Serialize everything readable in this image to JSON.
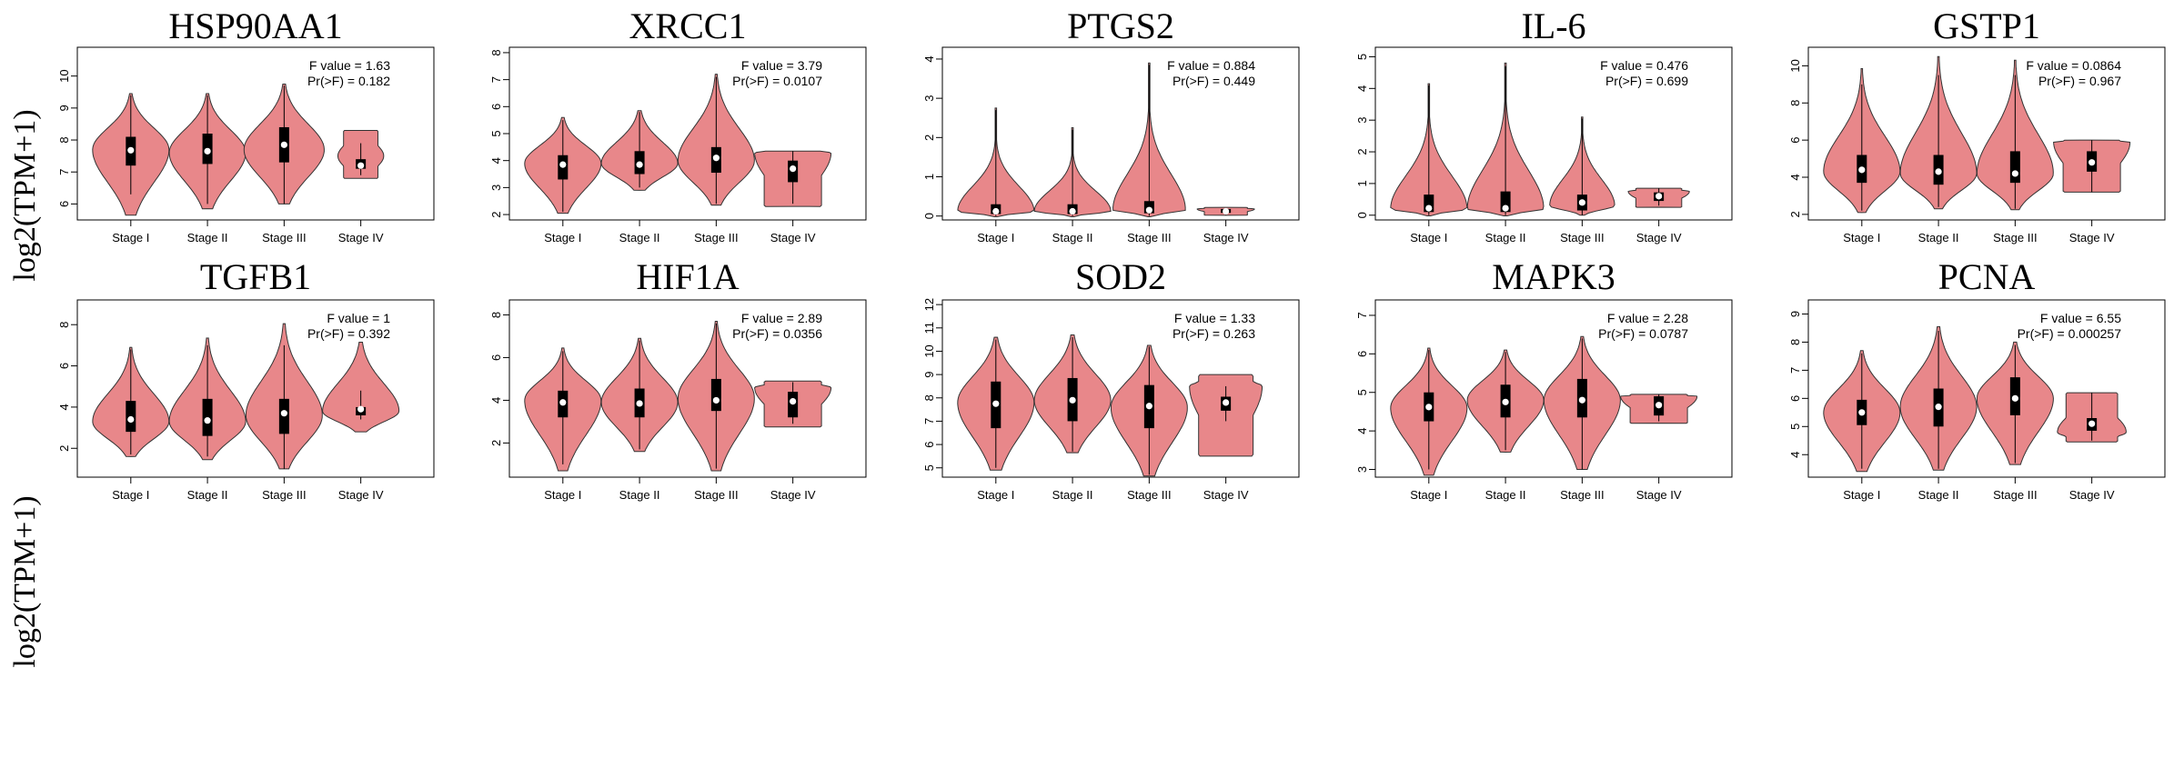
{
  "figure": {
    "ylabel": "log2(TPM+1)"
  },
  "colors": {
    "violin_fill": "#E8878A",
    "violin_stroke": "#333333",
    "box": "#000000",
    "median": "#ffffff"
  },
  "chart_data": [
    {
      "type": "violin",
      "title": "HSP90AA1",
      "categories": [
        "Stage I",
        "Stage II",
        "Stage III",
        "Stage IV"
      ],
      "ylim": [
        5.5,
        10.9
      ],
      "yticks": [
        6,
        7,
        8,
        9,
        10
      ],
      "stats": {
        "f_label": "F value = 1.63",
        "p_label": "Pr(>F) = 0.182"
      },
      "violins": [
        {
          "min": 5.65,
          "max": 9.45,
          "q1": 7.2,
          "q3": 8.1,
          "median": 7.68,
          "wlo": 6.3,
          "whi": 9.4,
          "peak": 7.7,
          "width": 1.0,
          "shape": 1.0
        },
        {
          "min": 5.85,
          "max": 9.45,
          "q1": 7.25,
          "q3": 8.2,
          "median": 7.65,
          "wlo": 6.0,
          "whi": 9.4,
          "peak": 7.6,
          "width": 1.0,
          "shape": 1.0
        },
        {
          "min": 6.0,
          "max": 9.75,
          "q1": 7.3,
          "q3": 8.4,
          "median": 7.85,
          "wlo": 6.0,
          "whi": 9.7,
          "peak": 7.7,
          "width": 1.05,
          "shape": 1.0
        },
        {
          "min": 6.8,
          "max": 8.3,
          "q1": 7.1,
          "q3": 7.4,
          "median": 7.2,
          "wlo": 6.9,
          "whi": 7.9,
          "peak": 7.5,
          "width": 0.6,
          "shape": 0.3
        }
      ]
    },
    {
      "type": "violin",
      "title": "XRCC1",
      "categories": [
        "Stage I",
        "Stage II",
        "Stage III",
        "Stage IV"
      ],
      "ylim": [
        1.8,
        8.2
      ],
      "yticks": [
        2,
        3,
        4,
        5,
        6,
        7,
        8
      ],
      "stats": {
        "f_label": "F value = 3.79",
        "p_label": "Pr(>F) = 0.0107"
      },
      "violins": [
        {
          "min": 2.05,
          "max": 5.6,
          "q1": 3.3,
          "q3": 4.2,
          "median": 3.85,
          "wlo": 2.1,
          "whi": 5.5,
          "peak": 3.9,
          "width": 1.0,
          "shape": 1.0
        },
        {
          "min": 2.9,
          "max": 5.85,
          "q1": 3.5,
          "q3": 4.35,
          "median": 3.85,
          "wlo": 3.0,
          "whi": 5.8,
          "peak": 3.9,
          "width": 1.0,
          "shape": 0.9
        },
        {
          "min": 2.35,
          "max": 7.2,
          "q1": 3.55,
          "q3": 4.5,
          "median": 4.1,
          "wlo": 2.4,
          "whi": 7.1,
          "peak": 4.0,
          "width": 1.0,
          "shape": 1.1
        },
        {
          "min": 2.3,
          "max": 4.35,
          "q1": 3.2,
          "q3": 4.0,
          "median": 3.7,
          "wlo": 2.4,
          "whi": 4.35,
          "peak": 4.3,
          "width": 1.0,
          "shape": 0.5
        }
      ]
    },
    {
      "type": "violin",
      "title": "PTGS2",
      "categories": [
        "Stage I",
        "Stage II",
        "Stage III",
        "Stage IV"
      ],
      "ylim": [
        -0.1,
        4.3
      ],
      "yticks": [
        0,
        1,
        2,
        3,
        4
      ],
      "stats": {
        "f_label": "F value = 0.884",
        "p_label": "Pr(>F) = 0.449"
      },
      "violins": [
        {
          "min": -0.02,
          "max": 2.75,
          "q1": 0.05,
          "q3": 0.3,
          "median": 0.12,
          "wlo": 0.0,
          "whi": 2.7,
          "peak": 0.12,
          "width": 1.0,
          "shape": 2.5
        },
        {
          "min": -0.02,
          "max": 2.25,
          "q1": 0.05,
          "q3": 0.3,
          "median": 0.12,
          "wlo": 0.0,
          "whi": 2.2,
          "peak": 0.12,
          "width": 1.0,
          "shape": 2.5
        },
        {
          "min": -0.02,
          "max": 3.9,
          "q1": 0.07,
          "q3": 0.38,
          "median": 0.15,
          "wlo": 0.0,
          "whi": 3.85,
          "peak": 0.15,
          "width": 0.95,
          "shape": 2.5
        },
        {
          "min": 0.02,
          "max": 0.22,
          "q1": 0.08,
          "q3": 0.18,
          "median": 0.12,
          "wlo": 0.03,
          "whi": 0.2,
          "peak": 0.18,
          "width": 0.75,
          "shape": 0.6
        }
      ]
    },
    {
      "type": "violin",
      "title": "IL-6",
      "categories": [
        "Stage I",
        "Stage II",
        "Stage III",
        "Stage IV"
      ],
      "ylim": [
        -0.15,
        5.3
      ],
      "yticks": [
        0,
        1,
        2,
        3,
        4,
        5
      ],
      "stats": {
        "f_label": "F value = 0.476",
        "p_label": "Pr(>F) = 0.699"
      },
      "violins": [
        {
          "min": -0.02,
          "max": 4.15,
          "q1": 0.1,
          "q3": 0.65,
          "median": 0.22,
          "wlo": 0.0,
          "whi": 4.1,
          "peak": 0.2,
          "width": 1.0,
          "shape": 2.2
        },
        {
          "min": -0.02,
          "max": 4.8,
          "q1": 0.1,
          "q3": 0.75,
          "median": 0.22,
          "wlo": 0.0,
          "whi": 4.7,
          "peak": 0.2,
          "width": 1.0,
          "shape": 2.2
        },
        {
          "min": 0.0,
          "max": 3.1,
          "q1": 0.15,
          "q3": 0.65,
          "median": 0.4,
          "wlo": 0.0,
          "whi": 3.05,
          "peak": 0.3,
          "width": 0.85,
          "shape": 1.8
        },
        {
          "min": 0.25,
          "max": 0.85,
          "q1": 0.45,
          "q3": 0.72,
          "median": 0.6,
          "wlo": 0.3,
          "whi": 0.85,
          "peak": 0.75,
          "width": 0.8,
          "shape": 0.5
        }
      ]
    },
    {
      "type": "violin",
      "title": "GSTP1",
      "categories": [
        "Stage I",
        "Stage II",
        "Stage III",
        "Stage IV"
      ],
      "ylim": [
        1.7,
        11.0
      ],
      "yticks": [
        2,
        4,
        6,
        8,
        10
      ],
      "stats": {
        "f_label": "F value = 0.0864",
        "p_label": "Pr(>F) = 0.967"
      },
      "violins": [
        {
          "min": 2.1,
          "max": 9.85,
          "q1": 3.7,
          "q3": 5.2,
          "median": 4.4,
          "wlo": 2.2,
          "whi": 9.0,
          "peak": 4.3,
          "width": 1.0,
          "shape": 1.3
        },
        {
          "min": 2.3,
          "max": 10.5,
          "q1": 3.6,
          "q3": 5.2,
          "median": 4.3,
          "wlo": 2.4,
          "whi": 9.5,
          "peak": 4.2,
          "width": 1.0,
          "shape": 1.3
        },
        {
          "min": 2.25,
          "max": 10.3,
          "q1": 3.7,
          "q3": 5.4,
          "median": 4.2,
          "wlo": 2.3,
          "whi": 9.5,
          "peak": 4.2,
          "width": 1.0,
          "shape": 1.3
        },
        {
          "min": 3.2,
          "max": 6.0,
          "q1": 4.3,
          "q3": 5.4,
          "median": 4.8,
          "wlo": 3.2,
          "whi": 6.0,
          "peak": 5.9,
          "width": 1.0,
          "shape": 0.5
        }
      ]
    },
    {
      "type": "violin",
      "title": "TGFB1",
      "categories": [
        "Stage I",
        "Stage II",
        "Stage III",
        "Stage IV"
      ],
      "ylim": [
        0.6,
        9.2
      ],
      "yticks": [
        2,
        4,
        6,
        8
      ],
      "stats": {
        "f_label": "F value = 1",
        "p_label": "Pr(>F) = 0.392"
      },
      "violins": [
        {
          "min": 1.6,
          "max": 6.9,
          "q1": 2.8,
          "q3": 4.3,
          "median": 3.4,
          "wlo": 1.7,
          "whi": 6.8,
          "peak": 3.3,
          "width": 1.0,
          "shape": 1.1
        },
        {
          "min": 1.45,
          "max": 7.35,
          "q1": 2.6,
          "q3": 4.4,
          "median": 3.35,
          "wlo": 1.6,
          "whi": 7.0,
          "peak": 3.3,
          "width": 1.0,
          "shape": 1.1
        },
        {
          "min": 1.0,
          "max": 8.05,
          "q1": 2.7,
          "q3": 4.4,
          "median": 3.7,
          "wlo": 1.0,
          "whi": 7.0,
          "peak": 3.6,
          "width": 1.0,
          "shape": 1.1
        },
        {
          "min": 2.8,
          "max": 7.15,
          "q1": 3.6,
          "q3": 4.0,
          "median": 3.9,
          "wlo": 3.4,
          "whi": 4.8,
          "peak": 3.8,
          "width": 1.0,
          "shape": 0.9
        }
      ]
    },
    {
      "type": "violin",
      "title": "HIF1A",
      "categories": [
        "Stage I",
        "Stage II",
        "Stage III",
        "Stage IV"
      ],
      "ylim": [
        0.4,
        8.7
      ],
      "yticks": [
        2,
        4,
        6,
        8
      ],
      "stats": {
        "f_label": "F value = 2.89",
        "p_label": "Pr(>F) = 0.0356"
      },
      "violins": [
        {
          "min": 0.7,
          "max": 6.45,
          "q1": 3.2,
          "q3": 4.45,
          "median": 3.9,
          "wlo": 1.0,
          "whi": 6.3,
          "peak": 4.0,
          "width": 1.0,
          "shape": 1.1
        },
        {
          "min": 1.6,
          "max": 6.9,
          "q1": 3.2,
          "q3": 4.55,
          "median": 3.85,
          "wlo": 1.7,
          "whi": 6.8,
          "peak": 3.9,
          "width": 1.0,
          "shape": 1.0
        },
        {
          "min": 0.7,
          "max": 7.7,
          "q1": 3.5,
          "q3": 5.0,
          "median": 4.0,
          "wlo": 0.8,
          "whi": 7.6,
          "peak": 4.1,
          "width": 1.0,
          "shape": 1.1
        },
        {
          "min": 2.75,
          "max": 4.9,
          "q1": 3.2,
          "q3": 4.4,
          "median": 3.95,
          "wlo": 2.9,
          "whi": 4.85,
          "peak": 4.6,
          "width": 1.0,
          "shape": 0.5
        }
      ]
    },
    {
      "type": "violin",
      "title": "SOD2",
      "categories": [
        "Stage I",
        "Stage II",
        "Stage III",
        "Stage IV"
      ],
      "ylim": [
        4.6,
        12.2
      ],
      "yticks": [
        5,
        6,
        7,
        8,
        9,
        10,
        11,
        12
      ],
      "stats": {
        "f_label": "F value = 1.33",
        "p_label": "Pr(>F) = 0.263"
      },
      "violins": [
        {
          "min": 4.9,
          "max": 10.6,
          "q1": 6.7,
          "q3": 8.7,
          "median": 7.75,
          "wlo": 5.0,
          "whi": 10.5,
          "peak": 7.8,
          "width": 1.0,
          "shape": 0.9
        },
        {
          "min": 5.65,
          "max": 10.7,
          "q1": 7.0,
          "q3": 8.85,
          "median": 7.9,
          "wlo": 5.7,
          "whi": 10.6,
          "peak": 7.9,
          "width": 1.0,
          "shape": 0.9
        },
        {
          "min": 4.65,
          "max": 10.25,
          "q1": 6.7,
          "q3": 8.55,
          "median": 7.65,
          "wlo": 4.7,
          "whi": 10.2,
          "peak": 7.6,
          "width": 1.0,
          "shape": 0.9
        },
        {
          "min": 5.5,
          "max": 9.0,
          "q1": 7.45,
          "q3": 8.05,
          "median": 7.8,
          "wlo": 7.0,
          "whi": 8.5,
          "peak": 8.5,
          "width": 0.95,
          "shape": 0.6
        }
      ]
    },
    {
      "type": "violin",
      "title": "MAPK3",
      "categories": [
        "Stage I",
        "Stage II",
        "Stage III",
        "Stage IV"
      ],
      "ylim": [
        2.8,
        7.4
      ],
      "yticks": [
        3,
        4,
        5,
        6,
        7
      ],
      "stats": {
        "f_label": "F value = 2.28",
        "p_label": "Pr(>F) = 0.0787"
      },
      "violins": [
        {
          "min": 2.85,
          "max": 6.15,
          "q1": 4.25,
          "q3": 5.0,
          "median": 4.62,
          "wlo": 3.0,
          "whi": 6.1,
          "peak": 4.6,
          "width": 1.0,
          "shape": 1.1
        },
        {
          "min": 3.45,
          "max": 6.1,
          "q1": 4.35,
          "q3": 5.2,
          "median": 4.75,
          "wlo": 3.5,
          "whi": 6.05,
          "peak": 4.8,
          "width": 1.0,
          "shape": 1.0
        },
        {
          "min": 3.0,
          "max": 6.45,
          "q1": 4.35,
          "q3": 5.35,
          "median": 4.8,
          "wlo": 3.0,
          "whi": 6.4,
          "peak": 4.8,
          "width": 1.0,
          "shape": 1.0
        },
        {
          "min": 4.2,
          "max": 4.95,
          "q1": 4.4,
          "q3": 4.9,
          "median": 4.67,
          "wlo": 4.25,
          "whi": 4.95,
          "peak": 4.9,
          "width": 1.0,
          "shape": 0.5
        }
      ]
    },
    {
      "type": "violin",
      "title": "PCNA",
      "categories": [
        "Stage I",
        "Stage II",
        "Stage III",
        "Stage IV"
      ],
      "ylim": [
        3.2,
        9.5
      ],
      "yticks": [
        4,
        5,
        6,
        7,
        8,
        9
      ],
      "stats": {
        "f_label": "F value = 6.55",
        "p_label": "Pr(>F) = 0.000257"
      },
      "violins": [
        {
          "min": 3.4,
          "max": 7.7,
          "q1": 5.05,
          "q3": 5.95,
          "median": 5.5,
          "wlo": 3.5,
          "whi": 7.6,
          "peak": 5.5,
          "width": 1.0,
          "shape": 1.0
        },
        {
          "min": 3.45,
          "max": 8.55,
          "q1": 5.0,
          "q3": 6.35,
          "median": 5.7,
          "wlo": 3.5,
          "whi": 8.4,
          "peak": 5.7,
          "width": 1.0,
          "shape": 1.0
        },
        {
          "min": 3.65,
          "max": 8.0,
          "q1": 5.4,
          "q3": 6.75,
          "median": 6.0,
          "wlo": 3.7,
          "whi": 7.9,
          "peak": 6.0,
          "width": 1.0,
          "shape": 0.95
        },
        {
          "min": 4.45,
          "max": 6.2,
          "q1": 4.85,
          "q3": 5.3,
          "median": 5.1,
          "wlo": 4.5,
          "whi": 6.2,
          "peak": 4.8,
          "width": 0.9,
          "shape": 0.5
        }
      ]
    }
  ]
}
